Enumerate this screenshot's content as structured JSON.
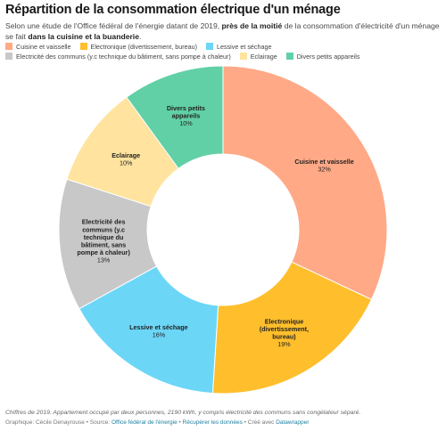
{
  "header": {
    "title": "Répartition de la consommation électrique d'un ménage",
    "intro_part1": "Selon une étude de l'Office fédéral de l'énergie datant de 2019, ",
    "intro_bold1": "près de la moitié",
    "intro_part2": " de la consommation d'électricité d'un ménage se fait ",
    "intro_bold2": "dans la cuisine et la buanderie",
    "intro_part3": "."
  },
  "chart_data": {
    "type": "pie",
    "donut": true,
    "legend_position": "top",
    "categories": [
      "Cuisine et vaisselle",
      "Electronique (divertissement, bureau)",
      "Lessive et séchage",
      "Electricité des communs (y.c technique du bâtiment, sans pompe à chaleur)",
      "Eclairage",
      "Divers petits appareils"
    ],
    "values": [
      32,
      19,
      16,
      13,
      10,
      10
    ],
    "value_labels": [
      "32%",
      "19%",
      "16%",
      "13%",
      "10%",
      "10%"
    ],
    "colors": [
      "#ffa986",
      "#ffbf2c",
      "#6cd6f7",
      "#c8c8c8",
      "#ffe39e",
      "#61d0a6"
    ],
    "slice_label_lines": [
      [
        "Cuisine et vaisselle"
      ],
      [
        "Electronique",
        "(divertissement,",
        "bureau)"
      ],
      [
        "Lessive et séchage"
      ],
      [
        "Electricité des",
        "communs (y.c",
        "technique du",
        "bâtiment, sans",
        "pompe à chaleur)"
      ],
      [
        "Eclairage"
      ],
      [
        "Divers petits",
        "appareils"
      ]
    ]
  },
  "footer": {
    "notes": "Chiffres de 2019. Appartement occupé par deux personnes, 2190 kWh, y compris électricité des communs sans congélateur séparé.",
    "graphic_prefix": "Graphique: Cécile Denayrouse • Source: ",
    "source_link": "Office fédéral de l'énergie",
    "separator1": " • ",
    "data_link": "Récupérer les données",
    "created_prefix": " • Créé avec ",
    "tool_link": "Datawrapper"
  }
}
